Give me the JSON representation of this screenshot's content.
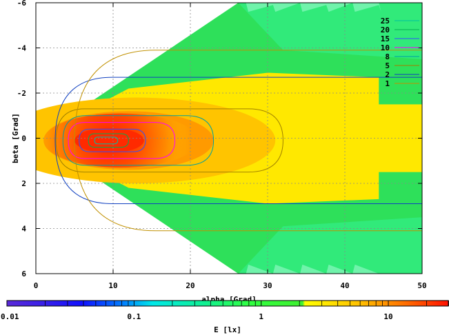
{
  "chart_data": {
    "type": "heatmap",
    "title": "",
    "xlabel": "alpha [Grad]",
    "ylabel": "beta [Grad]",
    "xlim": [
      0,
      50
    ],
    "ylim": [
      -6,
      6
    ],
    "y_reversed": true,
    "x_ticks": [
      "0",
      "10",
      "20",
      "30",
      "40",
      "50"
    ],
    "x_tick_values": [
      0,
      10,
      20,
      30,
      40,
      50
    ],
    "y_ticks": [
      "-6",
      "-4",
      "-2",
      "0",
      "2",
      "4",
      "6"
    ],
    "y_tick_values": [
      -6,
      -4,
      -2,
      0,
      2,
      4,
      6
    ],
    "grid": true,
    "colorbar": {
      "label": "E [lx]",
      "scale": "log",
      "range": [
        0.01,
        30
      ],
      "ticks": [
        "0.01",
        "0.1",
        "1",
        "10"
      ],
      "tick_values": [
        0.01,
        0.1,
        1,
        10
      ]
    },
    "contour_legend": {
      "placement": "top-right",
      "entries": [
        {
          "label": "25",
          "color": "#00c0a0"
        },
        {
          "label": "20",
          "color": "#00b050"
        },
        {
          "label": "15",
          "color": "#3050ff"
        },
        {
          "label": "10",
          "color": "#ff00ff"
        },
        {
          "label": "8",
          "color": "#00a0a0"
        },
        {
          "label": "5",
          "color": "#a08000"
        },
        {
          "label": "2",
          "color": "#1040c0"
        },
        {
          "label": "1",
          "color": "#c09000"
        }
      ]
    },
    "contours": [
      {
        "level": 25,
        "color": "#00c0a0",
        "x0": 7.6,
        "x1": 10.6,
        "ry": 0.15
      },
      {
        "level": 20,
        "color": "#00b050",
        "x0": 6.8,
        "x1": 12.0,
        "ry": 0.3
      },
      {
        "level": 15,
        "color": "#3050ff",
        "x0": 5.6,
        "x1": 14.2,
        "ry": 0.5
      },
      {
        "level": 10,
        "color": "#ff00ff",
        "x0": 4.2,
        "x1": 18.0,
        "ry": 0.8
      },
      {
        "level": 8,
        "color": "#00a0a0",
        "x0": 3.5,
        "x1": 23.0,
        "ry": 1.1
      },
      {
        "level": 5,
        "color": "#a08000",
        "x0": 2.6,
        "x1": 32.0,
        "ry": 1.4
      },
      {
        "level": 2,
        "color": "#1040c0",
        "x0": 2.5,
        "x1": 50.0,
        "ry": 2.8
      },
      {
        "level": 1,
        "color": "#c09000",
        "x0": 5.0,
        "x1": 50.0,
        "ry": 4.0
      }
    ],
    "illuminance_peak": {
      "x": 9.5,
      "y": 0.1,
      "value": 30
    }
  }
}
